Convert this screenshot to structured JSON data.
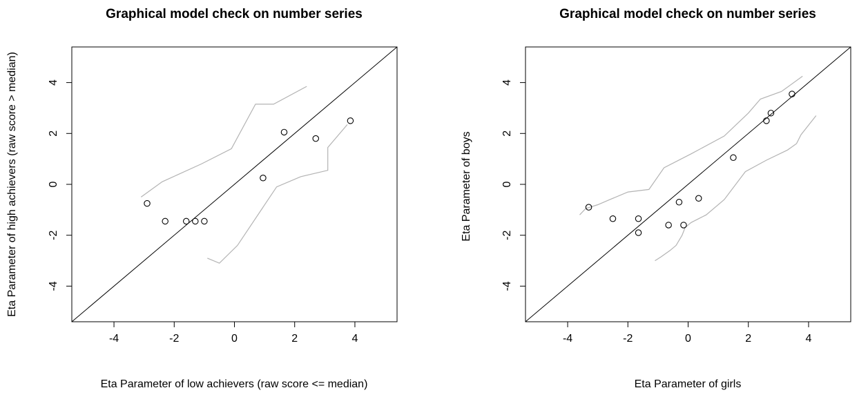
{
  "chart_data": [
    {
      "type": "scatter",
      "title": "Graphical model check on number series",
      "xlabel": "Eta Parameter of low achievers (raw score <= median)",
      "ylabel": "Eta Parameter of high achievers (raw score > median)",
      "xlim": [
        -5.4,
        5.4
      ],
      "ylim": [
        -5.4,
        5.4
      ],
      "xticks": [
        -4,
        -2,
        0,
        2,
        4
      ],
      "yticks": [
        -4,
        -2,
        0,
        2,
        4
      ],
      "xtick_labels": [
        "-4",
        "-2",
        "0",
        "2",
        "4"
      ],
      "ytick_labels": [
        "-4",
        "-2",
        "0",
        "2",
        "4"
      ],
      "grid": false,
      "points": [
        {
          "x": -2.9,
          "y": -0.75
        },
        {
          "x": -2.3,
          "y": -1.45
        },
        {
          "x": -1.6,
          "y": -1.45
        },
        {
          "x": -1.3,
          "y": -1.45
        },
        {
          "x": -1.0,
          "y": -1.45
        },
        {
          "x": 0.95,
          "y": 0.25
        },
        {
          "x": 1.65,
          "y": 2.05
        },
        {
          "x": 2.7,
          "y": 1.8
        },
        {
          "x": 3.85,
          "y": 2.5
        }
      ],
      "reference_line": {
        "slope": 1,
        "intercept": 0,
        "color": "#000000"
      },
      "confidence_upper": [
        {
          "x": -3.1,
          "y": -0.5
        },
        {
          "x": -2.4,
          "y": 0.1
        },
        {
          "x": -1.1,
          "y": 0.8
        },
        {
          "x": -0.1,
          "y": 1.4
        },
        {
          "x": 0.7,
          "y": 3.15
        },
        {
          "x": 1.3,
          "y": 3.15
        },
        {
          "x": 2.4,
          "y": 3.85
        }
      ],
      "confidence_lower": [
        {
          "x": -0.9,
          "y": -2.9
        },
        {
          "x": -0.5,
          "y": -3.1
        },
        {
          "x": 0.1,
          "y": -2.4
        },
        {
          "x": 1.4,
          "y": -0.1
        },
        {
          "x": 2.2,
          "y": 0.3
        },
        {
          "x": 3.1,
          "y": 0.55
        },
        {
          "x": 3.1,
          "y": 1.45
        },
        {
          "x": 3.75,
          "y": 2.35
        }
      ],
      "colors": {
        "points": "#000000",
        "confidence": "#b3b3b3",
        "axes": "#000000"
      }
    },
    {
      "type": "scatter",
      "title": "Graphical model check on number series",
      "xlabel": "Eta Parameter of girls",
      "ylabel": "Eta Parameter of boys",
      "xlim": [
        -5.4,
        5.4
      ],
      "ylim": [
        -5.4,
        5.4
      ],
      "xticks": [
        -4,
        -2,
        0,
        2,
        4
      ],
      "yticks": [
        -4,
        -2,
        0,
        2,
        4
      ],
      "xtick_labels": [
        "-4",
        "-2",
        "0",
        "2",
        "4"
      ],
      "ytick_labels": [
        "-4",
        "-2",
        "0",
        "2",
        "4"
      ],
      "grid": false,
      "points": [
        {
          "x": -3.3,
          "y": -0.9
        },
        {
          "x": -2.5,
          "y": -1.35
        },
        {
          "x": -1.65,
          "y": -1.35
        },
        {
          "x": -1.65,
          "y": -1.9
        },
        {
          "x": -0.65,
          "y": -1.6
        },
        {
          "x": -0.3,
          "y": -0.7
        },
        {
          "x": -0.15,
          "y": -1.6
        },
        {
          "x": 0.35,
          "y": -0.55
        },
        {
          "x": 1.5,
          "y": 1.05
        },
        {
          "x": 2.6,
          "y": 2.5
        },
        {
          "x": 2.75,
          "y": 2.8
        },
        {
          "x": 3.45,
          "y": 3.55
        }
      ],
      "reference_line": {
        "slope": 1,
        "intercept": 0,
        "color": "#000000"
      },
      "confidence_upper": [
        {
          "x": -3.6,
          "y": -1.2
        },
        {
          "x": -3.4,
          "y": -0.95
        },
        {
          "x": -3.0,
          "y": -0.8
        },
        {
          "x": -2.6,
          "y": -0.6
        },
        {
          "x": -2.0,
          "y": -0.3
        },
        {
          "x": -1.3,
          "y": -0.2
        },
        {
          "x": -0.8,
          "y": 0.65
        },
        {
          "x": 0.1,
          "y": 1.2
        },
        {
          "x": 1.2,
          "y": 1.9
        },
        {
          "x": 2.0,
          "y": 2.8
        },
        {
          "x": 2.4,
          "y": 3.35
        },
        {
          "x": 3.1,
          "y": 3.65
        },
        {
          "x": 3.8,
          "y": 4.25
        }
      ],
      "confidence_lower": [
        {
          "x": -1.1,
          "y": -3.0
        },
        {
          "x": -0.9,
          "y": -2.85
        },
        {
          "x": -0.6,
          "y": -2.6
        },
        {
          "x": -0.4,
          "y": -2.4
        },
        {
          "x": -0.2,
          "y": -2.0
        },
        {
          "x": -0.1,
          "y": -1.7
        },
        {
          "x": 0.1,
          "y": -1.5
        },
        {
          "x": 0.6,
          "y": -1.2
        },
        {
          "x": 1.2,
          "y": -0.6
        },
        {
          "x": 1.9,
          "y": 0.5
        },
        {
          "x": 2.6,
          "y": 0.95
        },
        {
          "x": 3.3,
          "y": 1.35
        },
        {
          "x": 3.6,
          "y": 1.6
        },
        {
          "x": 3.75,
          "y": 1.95
        },
        {
          "x": 4.25,
          "y": 2.7
        }
      ],
      "colors": {
        "points": "#000000",
        "confidence": "#b3b3b3",
        "axes": "#000000"
      }
    }
  ]
}
